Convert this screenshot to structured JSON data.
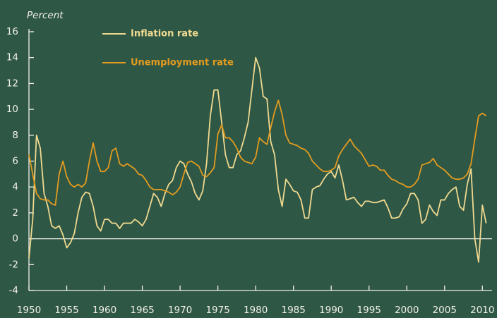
{
  "chart_data": {
    "type": "line",
    "y_axis_label": "Percent",
    "x": [
      1950,
      1950.5,
      1951,
      1951.5,
      1952,
      1952.5,
      1953,
      1953.5,
      1954,
      1954.5,
      1955,
      1955.5,
      1956,
      1956.5,
      1957,
      1957.5,
      1958,
      1958.5,
      1959,
      1959.5,
      1960,
      1960.5,
      1961,
      1961.5,
      1962,
      1962.5,
      1963,
      1963.5,
      1964,
      1964.5,
      1965,
      1965.5,
      1966,
      1966.5,
      1967,
      1967.5,
      1968,
      1968.5,
      1969,
      1969.5,
      1970,
      1970.5,
      1971,
      1971.5,
      1972,
      1972.5,
      1973,
      1973.5,
      1974,
      1974.5,
      1975,
      1975.5,
      1976,
      1976.5,
      1977,
      1977.5,
      1978,
      1978.5,
      1979,
      1979.5,
      1980,
      1980.5,
      1981,
      1981.5,
      1982,
      1982.5,
      1983,
      1983.5,
      1984,
      1984.5,
      1985,
      1985.5,
      1986,
      1986.5,
      1987,
      1987.5,
      1988,
      1988.5,
      1989,
      1989.5,
      1990,
      1990.5,
      1991,
      1991.5,
      1992,
      1992.5,
      1993,
      1993.5,
      1994,
      1994.5,
      1995,
      1995.5,
      1996,
      1996.5,
      1997,
      1997.5,
      1998,
      1998.5,
      1999,
      1999.5,
      2000,
      2000.5,
      2001,
      2001.5,
      2002,
      2002.5,
      2003,
      2003.5,
      2004,
      2004.5,
      2005,
      2005.5,
      2006,
      2006.5,
      2007,
      2007.5,
      2008,
      2008.5,
      2009,
      2009.5,
      2010,
      2010.5
    ],
    "series": [
      {
        "name": "Inflation rate",
        "color": "#efd98f",
        "values": [
          -1.5,
          1.5,
          8.0,
          7.0,
          3.5,
          2.5,
          1.0,
          0.8,
          1.0,
          0.3,
          -0.7,
          -0.3,
          0.4,
          2.0,
          3.2,
          3.6,
          3.5,
          2.5,
          1.0,
          0.6,
          1.5,
          1.5,
          1.2,
          1.2,
          0.8,
          1.2,
          1.2,
          1.2,
          1.5,
          1.3,
          1.0,
          1.5,
          2.5,
          3.5,
          3.2,
          2.5,
          3.5,
          4.2,
          4.5,
          5.5,
          6.0,
          5.8,
          5.0,
          4.4,
          3.5,
          3.0,
          3.7,
          5.8,
          9.5,
          11.5,
          11.5,
          9.0,
          6.5,
          5.5,
          5.5,
          6.5,
          6.8,
          7.8,
          9.0,
          11.5,
          14.0,
          13.2,
          11.0,
          10.8,
          7.5,
          6.5,
          3.8,
          2.5,
          4.6,
          4.2,
          3.7,
          3.6,
          3.0,
          1.6,
          1.6,
          3.8,
          4.0,
          4.1,
          4.6,
          5.0,
          5.2,
          4.7,
          5.7,
          4.5,
          3.0,
          3.1,
          3.2,
          2.8,
          2.5,
          2.9,
          2.9,
          2.8,
          2.8,
          2.9,
          3.0,
          2.4,
          1.6,
          1.6,
          1.7,
          2.3,
          2.7,
          3.5,
          3.5,
          3.0,
          1.2,
          1.5,
          2.6,
          2.1,
          1.8,
          3.0,
          3.0,
          3.5,
          3.8,
          4.0,
          2.5,
          2.2,
          4.2,
          5.4,
          0.0,
          -1.8,
          2.6,
          1.2
        ]
      },
      {
        "name": "Unemployment rate",
        "color": "#e39b1f",
        "values": [
          6.5,
          5.0,
          3.5,
          3.1,
          3.0,
          3.0,
          2.7,
          2.6,
          5.0,
          6.0,
          4.8,
          4.2,
          4.0,
          4.2,
          4.0,
          4.3,
          6.0,
          7.4,
          6.0,
          5.2,
          5.2,
          5.5,
          6.8,
          7.0,
          5.8,
          5.6,
          5.8,
          5.6,
          5.4,
          5.0,
          4.9,
          4.5,
          4.0,
          3.8,
          3.8,
          3.8,
          3.7,
          3.6,
          3.4,
          3.6,
          4.0,
          5.0,
          5.9,
          6.0,
          5.8,
          5.6,
          4.9,
          4.8,
          5.1,
          5.5,
          8.1,
          8.8,
          7.8,
          7.8,
          7.5,
          7.0,
          6.3,
          6.0,
          5.9,
          5.8,
          6.3,
          7.8,
          7.5,
          7.3,
          8.6,
          9.8,
          10.7,
          9.6,
          8.0,
          7.4,
          7.3,
          7.2,
          7.0,
          6.9,
          6.6,
          6.0,
          5.7,
          5.4,
          5.2,
          5.2,
          5.3,
          5.5,
          6.4,
          6.9,
          7.3,
          7.7,
          7.2,
          6.9,
          6.6,
          6.1,
          5.6,
          5.7,
          5.6,
          5.3,
          5.3,
          4.9,
          4.6,
          4.5,
          4.3,
          4.2,
          4.0,
          4.0,
          4.2,
          4.6,
          5.7,
          5.8,
          5.9,
          6.2,
          5.7,
          5.5,
          5.3,
          5.0,
          4.7,
          4.6,
          4.6,
          4.7,
          5.0,
          5.8,
          7.7,
          9.5,
          9.7,
          9.5
        ]
      }
    ],
    "xlim": [
      1950,
      2011
    ],
    "xticks": [
      1950,
      1955,
      1960,
      1965,
      1970,
      1975,
      1980,
      1985,
      1990,
      1995,
      2000,
      2005,
      2010
    ],
    "ylim": [
      -4,
      16
    ],
    "yticks": [
      -4,
      -2,
      0,
      2,
      4,
      6,
      8,
      10,
      12,
      14,
      16
    ]
  }
}
